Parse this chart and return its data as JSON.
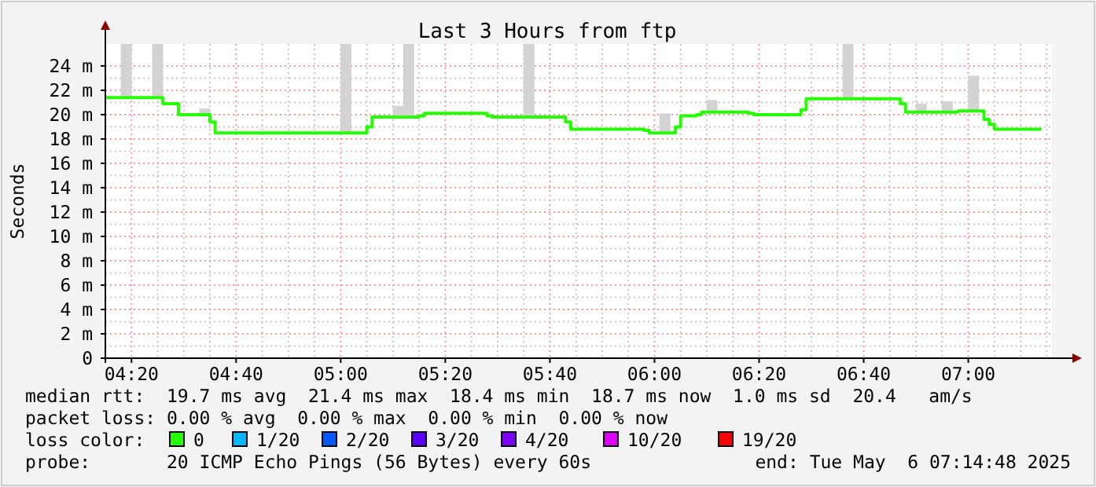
{
  "chart_data": {
    "type": "step",
    "title": "Last 3 Hours from ftp",
    "ylabel": "Seconds",
    "legend_title": "loss color:",
    "legend": "bottom",
    "grid": true,
    "xlim": [
      "2025-05-06T04:15",
      "2025-05-06T07:16"
    ],
    "xticks": [
      {
        "value": "2025-05-06T04:20",
        "label": "04:20"
      },
      {
        "value": "2025-05-06T04:40",
        "label": "04:40"
      },
      {
        "value": "2025-05-06T05:00",
        "label": "05:00"
      },
      {
        "value": "2025-05-06T05:20",
        "label": "05:20"
      },
      {
        "value": "2025-05-06T05:40",
        "label": "05:40"
      },
      {
        "value": "2025-05-06T06:00",
        "label": "06:00"
      },
      {
        "value": "2025-05-06T06:20",
        "label": "06:20"
      },
      {
        "value": "2025-05-06T06:40",
        "label": "06:40"
      },
      {
        "value": "2025-05-06T07:00",
        "label": "07:00"
      }
    ],
    "ylim": [
      0,
      25.8
    ],
    "yticks": [
      0,
      {
        "value": 2,
        "label": "2 m"
      },
      {
        "value": 4,
        "label": "4 m"
      },
      {
        "value": 6,
        "label": "6 m"
      },
      {
        "value": 8,
        "label": "8 m"
      },
      {
        "value": 10,
        "label": "10 m"
      },
      {
        "value": 12,
        "label": "12 m"
      },
      {
        "value": 14,
        "label": "14 m"
      },
      {
        "value": 16,
        "label": "16 m"
      },
      {
        "value": 18,
        "label": "18 m"
      },
      {
        "value": 20,
        "label": "20 m"
      },
      {
        "value": 22,
        "label": "22 m"
      },
      {
        "value": 24,
        "label": "24 m"
      }
    ],
    "series": [
      {
        "type": "bar",
        "color": "#d3d3d3",
        "x": [
          "2025-05-06T04:19",
          "2025-05-06T04:25",
          "2025-05-06T04:34",
          "2025-05-06T05:01",
          "2025-05-06T05:11",
          "2025-05-06T05:13",
          "2025-05-06T05:36",
          "2025-05-06T06:02",
          "2025-05-06T06:11",
          "2025-05-06T06:37",
          "2025-05-06T06:51",
          "2025-05-06T06:56",
          "2025-05-06T07:01"
        ],
        "base": [
          21.4,
          21.4,
          20,
          18.5,
          19.8,
          19.8,
          19.8,
          18.5,
          20.2,
          21.3,
          20.2,
          20.3,
          20.3
        ],
        "values": [
          4.4,
          4.4,
          0.5,
          7.3,
          0.9,
          6,
          6,
          1.6,
          1,
          4.5,
          0.7,
          0.8,
          2.9
        ]
      },
      {
        "name": "0",
        "color": "#26ff00",
        "x": [
          "2025-05-06T04:15",
          "2025-05-06T04:26",
          "2025-05-06T04:29",
          "2025-05-06T04:35",
          "2025-05-06T04:36",
          "2025-05-06T05:05",
          "2025-05-06T05:06",
          "2025-05-06T05:15",
          "2025-05-06T05:16",
          "2025-05-06T05:28",
          "2025-05-06T05:29",
          "2025-05-06T05:43",
          "2025-05-06T05:44",
          "2025-05-06T05:58",
          "2025-05-06T05:59",
          "2025-05-06T06:04",
          "2025-05-06T06:05",
          "2025-05-06T06:08",
          "2025-05-06T06:09",
          "2025-05-06T06:18",
          "2025-05-06T06:19",
          "2025-05-06T06:28",
          "2025-05-06T06:29",
          "2025-05-06T06:47",
          "2025-05-06T06:48",
          "2025-05-06T06:58",
          "2025-05-06T07:03",
          "2025-05-06T07:04",
          "2025-05-06T07:05",
          "2025-05-06T07:14"
        ],
        "values": [
          21.4,
          20.9,
          20,
          19.4,
          18.5,
          19,
          19.8,
          19.9,
          20.1,
          19.9,
          19.8,
          19.4,
          18.8,
          18.7,
          18.5,
          19,
          19.9,
          20,
          20.2,
          20.1,
          20,
          20.4,
          21.3,
          20.9,
          20.2,
          20.3,
          19.6,
          19.2,
          18.8,
          18.8
        ]
      },
      {
        "name": "1/20",
        "color": "#00b8ff"
      },
      {
        "name": "2/20",
        "color": "#0059ff"
      },
      {
        "name": "3/20",
        "color": "#5e00ff"
      },
      {
        "name": "4/20",
        "color": "#7e00ff"
      },
      {
        "name": "10/20",
        "color": "#dd00ff"
      },
      {
        "name": "19/20",
        "color": "#ff0000"
      }
    ],
    "annotations": [
      "median rtt:  19.7 ms avg  21.4 ms max  18.4 ms min  18.7 ms now  1.0 ms sd  20.4   am/s",
      "packet loss: 0.00 % avg  0.00 % max  0.00 % min  0.00 % now",
      "probe:       20 ICMP Echo Pings (56 Bytes) every 60s",
      "end: Tue May  6 07:14:48 2025"
    ]
  }
}
